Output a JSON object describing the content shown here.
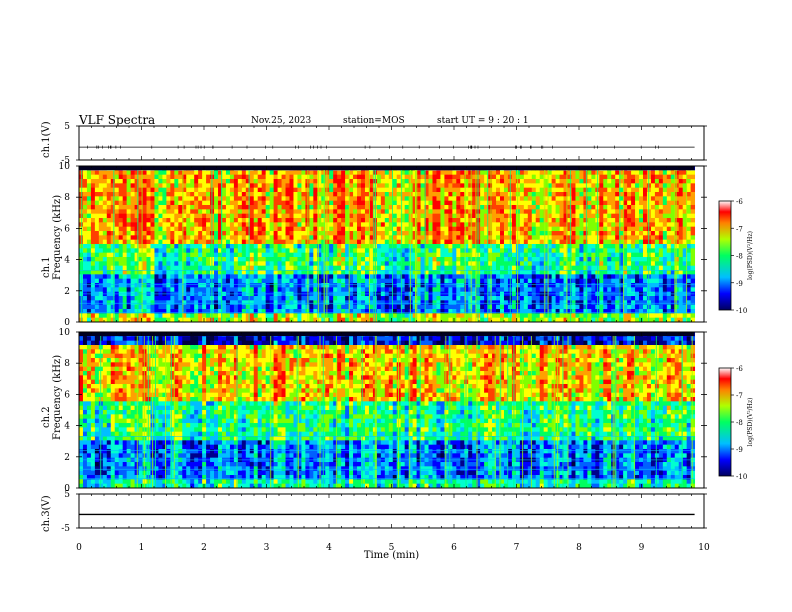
{
  "header": {
    "title": "VLF Spectra",
    "date": "Nov.25, 2023",
    "station": "station=MOS",
    "start": "start  UT =   9 : 20 : 1"
  },
  "colors": {
    "spectrum_colormap": [
      "#00008b",
      "#0000ff",
      "#00bfff",
      "#00ff80",
      "#ffff00",
      "#ff8000",
      "#ff0000"
    ],
    "waveform_line": "#000000"
  },
  "chart_data": [
    {
      "type": "line",
      "title": "",
      "ylabel": "ch.1(V)",
      "ylim": [
        -5,
        5
      ],
      "yticks": [
        "5",
        "-5"
      ],
      "x": [
        0,
        9.85
      ],
      "series": [
        {
          "values": [
            -1.2,
            -1.2
          ]
        }
      ]
    },
    {
      "type": "heatmap",
      "ylabel": "ch.1",
      "ylabel2": "Frequency (kHz)",
      "ylim": [
        0,
        10
      ],
      "yticks": [
        "0",
        "2",
        "4",
        "6",
        "8",
        "10"
      ],
      "xlim": [
        0,
        10
      ],
      "data_end_min": 9.85,
      "colorbar": {
        "label": "log(PSD)(V²/Hz)",
        "range": [
          -10,
          -6
        ],
        "ticks": [
          "-6",
          "-7",
          "-8",
          "-9",
          "-10"
        ]
      }
    },
    {
      "type": "heatmap",
      "ylabel": "ch.2",
      "ylabel2": "Frequency (kHz)",
      "ylim": [
        0,
        10
      ],
      "yticks": [
        "0",
        "2",
        "4",
        "6",
        "8",
        "10"
      ],
      "xlim": [
        0,
        10
      ],
      "data_end_min": 9.85,
      "colorbar": {
        "label": "log(PSD)(V²/Hz)",
        "range": [
          -10,
          -6
        ],
        "ticks": [
          "-6",
          "-7",
          "-8",
          "-9",
          "-10"
        ]
      }
    },
    {
      "type": "line",
      "ylabel": "ch.3(V)",
      "ylim": [
        -5,
        5
      ],
      "yticks": [
        "5",
        "-5"
      ],
      "x": [
        0,
        9.85
      ],
      "series": [
        {
          "values": [
            -1.0,
            -1.0
          ]
        }
      ]
    }
  ],
  "xaxis": {
    "label": "Time  (min)",
    "ticks": [
      "0",
      "1",
      "2",
      "3",
      "4",
      "5",
      "6",
      "7",
      "8",
      "9",
      "10"
    ],
    "range": [
      0,
      10
    ]
  }
}
